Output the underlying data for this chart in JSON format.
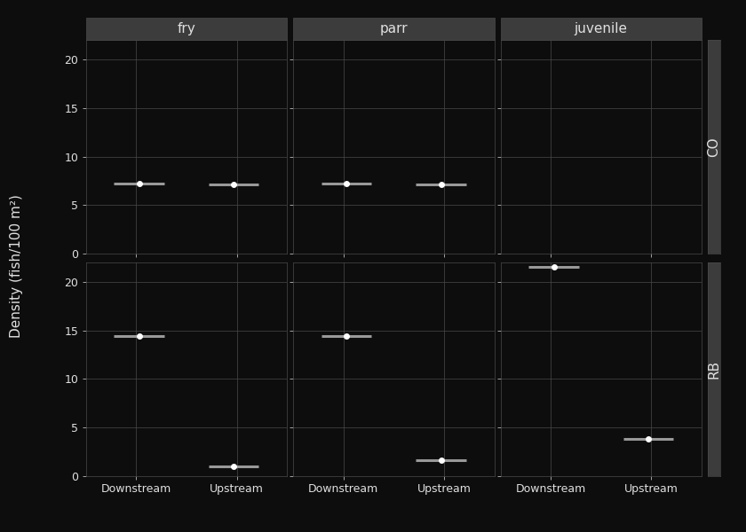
{
  "cols": [
    "fry",
    "parr",
    "juvenile"
  ],
  "rows": [
    "CO",
    "RB"
  ],
  "ylabel": "Density (fish/100 m²)",
  "background_color": "#0d0d0d",
  "panel_bg": "#0d0d0d",
  "grid_color": "#4a4a4a",
  "text_color": "#e0e0e0",
  "header_bg": "#3c3c3c",
  "row_strip_bg": "#3c3c3c",
  "point_color": "#ffffff",
  "line_color": "#999999",
  "data": {
    "CO": {
      "fry": {
        "Downstream": {
          "mean": 7.2,
          "lo": 6.4,
          "hi": 7.65,
          "xlo": -0.22,
          "xhi": 0.28
        },
        "Upstream": {
          "mean": 7.1,
          "lo": 6.6,
          "hi": 7.6,
          "xlo": 0.72,
          "xhi": 1.22
        }
      },
      "parr": {
        "Downstream": {
          "mean": 7.2,
          "lo": 6.4,
          "hi": 7.7,
          "xlo": -0.22,
          "xhi": 0.28
        },
        "Upstream": {
          "mean": 7.1,
          "lo": 6.5,
          "hi": 7.6,
          "xlo": 0.72,
          "xhi": 1.22
        }
      },
      "juvenile": {
        "Downstream": {
          "mean": null,
          "lo": null,
          "hi": null,
          "xlo": null,
          "xhi": null
        },
        "Upstream": {
          "mean": null,
          "lo": null,
          "hi": null,
          "xlo": null,
          "xhi": null
        }
      }
    },
    "RB": {
      "fry": {
        "Downstream": {
          "mean": 14.4,
          "lo": 13.6,
          "hi": 14.75,
          "xlo": -0.22,
          "xhi": 0.28
        },
        "Upstream": {
          "mean": 1.0,
          "lo": 0.55,
          "hi": 1.35,
          "xlo": 0.72,
          "xhi": 1.22
        }
      },
      "parr": {
        "Downstream": {
          "mean": 14.4,
          "lo": 13.6,
          "hi": 14.75,
          "xlo": -0.22,
          "xhi": 0.28
        },
        "Upstream": {
          "mean": 1.65,
          "lo": 0.85,
          "hi": 1.95,
          "xlo": 0.72,
          "xhi": 1.22
        }
      },
      "juvenile": {
        "Downstream": {
          "mean": 21.5,
          "lo": 21.0,
          "hi": 21.85,
          "xlo": -0.22,
          "xhi": 0.28
        },
        "Upstream": {
          "mean": 3.8,
          "lo": 3.35,
          "hi": 4.2,
          "xlo": 0.72,
          "xhi": 1.22
        }
      }
    }
  },
  "ylims": {
    "CO": [
      0,
      22
    ],
    "RB": [
      0,
      22
    ]
  },
  "yticks": {
    "CO": [
      0,
      5,
      10,
      15,
      20
    ],
    "RB": [
      0,
      5,
      10,
      15,
      20
    ]
  },
  "x_labels": [
    "Downstream",
    "Upstream"
  ],
  "x_positions": [
    0.03,
    0.97
  ]
}
